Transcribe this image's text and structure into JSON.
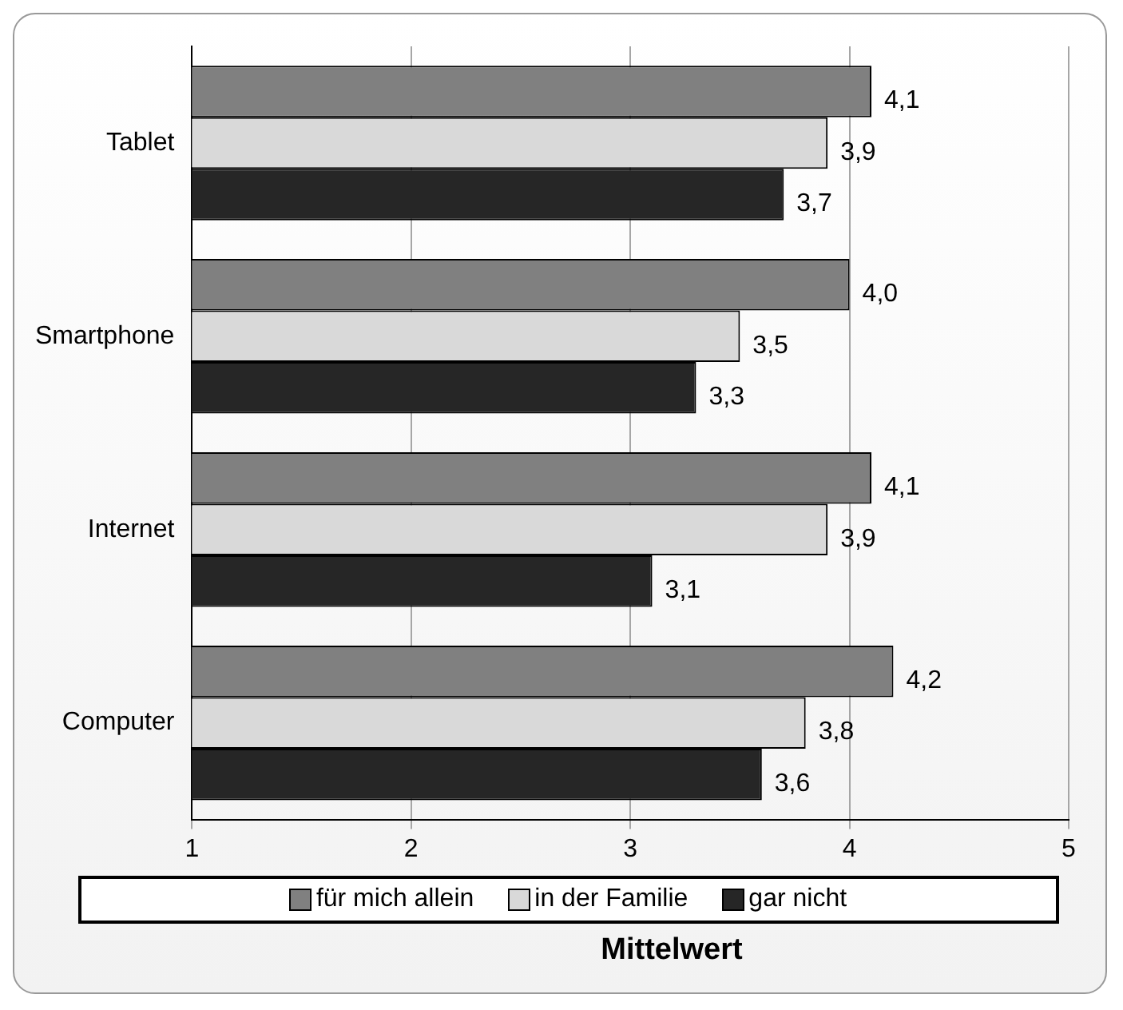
{
  "chart_data": {
    "type": "bar",
    "orientation": "horizontal",
    "xlabel": "Mittelwert",
    "categories": [
      "Tablet",
      "Smartphone",
      "Internet",
      "Computer"
    ],
    "series": [
      {
        "name": "für mich allein",
        "color": "#808080",
        "values": [
          4.1,
          4.0,
          4.1,
          4.2
        ],
        "value_labels": [
          "4,1",
          "4,0",
          "4,1",
          "4,2"
        ]
      },
      {
        "name": "in der Familie",
        "color": "#d9d9d9",
        "values": [
          3.9,
          3.5,
          3.9,
          3.8
        ],
        "value_labels": [
          "3,9",
          "3,5",
          "3,9",
          "3,8"
        ]
      },
      {
        "name": "gar nicht",
        "color": "#262626",
        "values": [
          3.7,
          3.3,
          3.1,
          3.6
        ],
        "value_labels": [
          "3,7",
          "3,3",
          "3,1",
          "3,6"
        ]
      }
    ],
    "xlim": [
      1,
      5
    ],
    "xticks": [
      1,
      2,
      3,
      4,
      5
    ],
    "grid": "x",
    "legend": "bottom"
  }
}
